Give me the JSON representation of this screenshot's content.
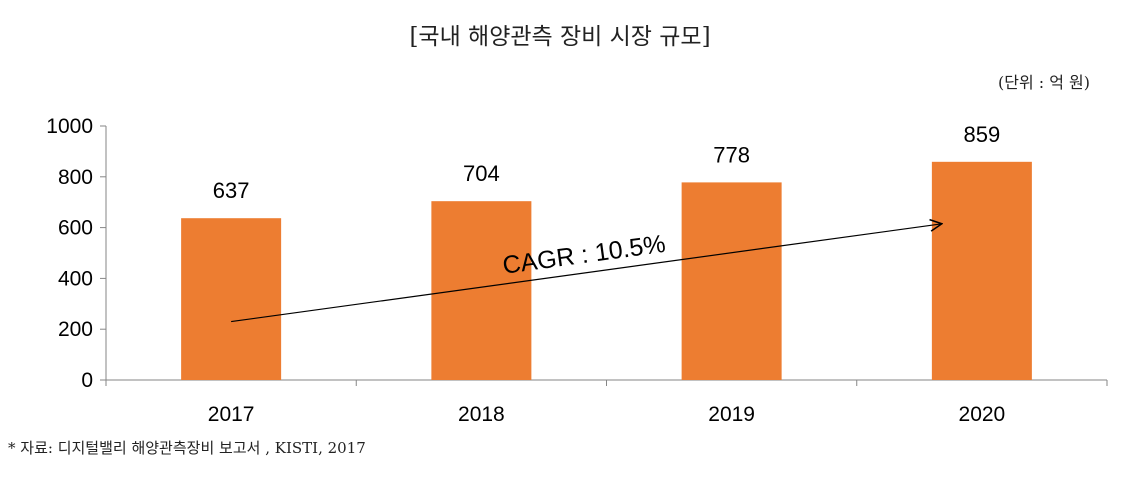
{
  "chart_data": {
    "type": "bar",
    "title": "[국내 해양관측 장비 시장 규모]",
    "unit": "(단위 : 억 원)",
    "categories": [
      "2017",
      "2018",
      "2019",
      "2020"
    ],
    "values": [
      637,
      704,
      778,
      859
    ],
    "ylim": [
      0,
      1000
    ],
    "yticks": [
      0,
      200,
      400,
      600,
      800,
      1000
    ],
    "ytick_labels": [
      "0",
      "200",
      "400",
      "600",
      "800",
      "1000"
    ],
    "bar_color": "#ED7D31",
    "grid": false,
    "legend": "none",
    "annotation": {
      "text": "CAGR : 10.5%",
      "arrow_from": [
        "2017",
        230
      ],
      "arrow_to": [
        "2020",
        615
      ]
    },
    "source": "* 자료: 디지털밸리 해양관측장비 보고서 , KISTI, 2017"
  }
}
